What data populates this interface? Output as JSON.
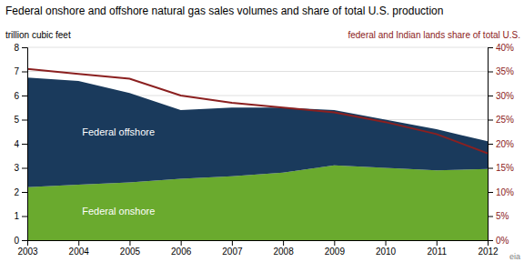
{
  "chart_data": {
    "type": "area",
    "title": "Federal onshore and offshore natural gas sales volumes and share of total U.S. production",
    "ylabel": "trillion cubic feet",
    "y2label": "federal and Indian lands share of total U.S.",
    "annotations": [
      "eia"
    ],
    "x": [
      2003,
      2004,
      2005,
      2006,
      2007,
      2008,
      2009,
      2010,
      2011,
      2012
    ],
    "xlim": [
      2003,
      2012
    ],
    "xticks": [
      2003,
      2004,
      2005,
      2006,
      2007,
      2008,
      2009,
      2010,
      2011,
      2012
    ],
    "ylim": [
      0,
      8
    ],
    "yticks": [
      0,
      1,
      2,
      3,
      4,
      5,
      6,
      7,
      8
    ],
    "y2lim": [
      0,
      40
    ],
    "y2ticks": [
      {
        "value": 0,
        "label": "0%"
      },
      {
        "value": 5,
        "label": "5%"
      },
      {
        "value": 10,
        "label": "10%"
      },
      {
        "value": 15,
        "label": "15%"
      },
      {
        "value": 20,
        "label": "20%"
      },
      {
        "value": 25,
        "label": "25%"
      },
      {
        "value": 30,
        "label": "30%"
      },
      {
        "value": 35,
        "label": "35%"
      },
      {
        "value": 40,
        "label": "40%"
      }
    ],
    "stacked": true,
    "grid": true,
    "series": [
      {
        "name": "Federal onshore",
        "type": "area",
        "color": "#6aaa2e",
        "values": [
          2.2,
          2.3,
          2.4,
          2.55,
          2.65,
          2.8,
          3.1,
          3.0,
          2.9,
          2.95
        ]
      },
      {
        "name": "Federal offshore",
        "type": "area",
        "color": "#1a3a5c",
        "values": [
          4.55,
          4.3,
          3.7,
          2.85,
          2.85,
          2.7,
          2.3,
          2.0,
          1.7,
          1.15
        ]
      },
      {
        "type": "line",
        "axis": "y2",
        "color": "#8b2020",
        "values": [
          35.5,
          34.5,
          33.5,
          30.0,
          28.5,
          27.5,
          26.5,
          24.5,
          22.0,
          18.0
        ]
      }
    ]
  }
}
